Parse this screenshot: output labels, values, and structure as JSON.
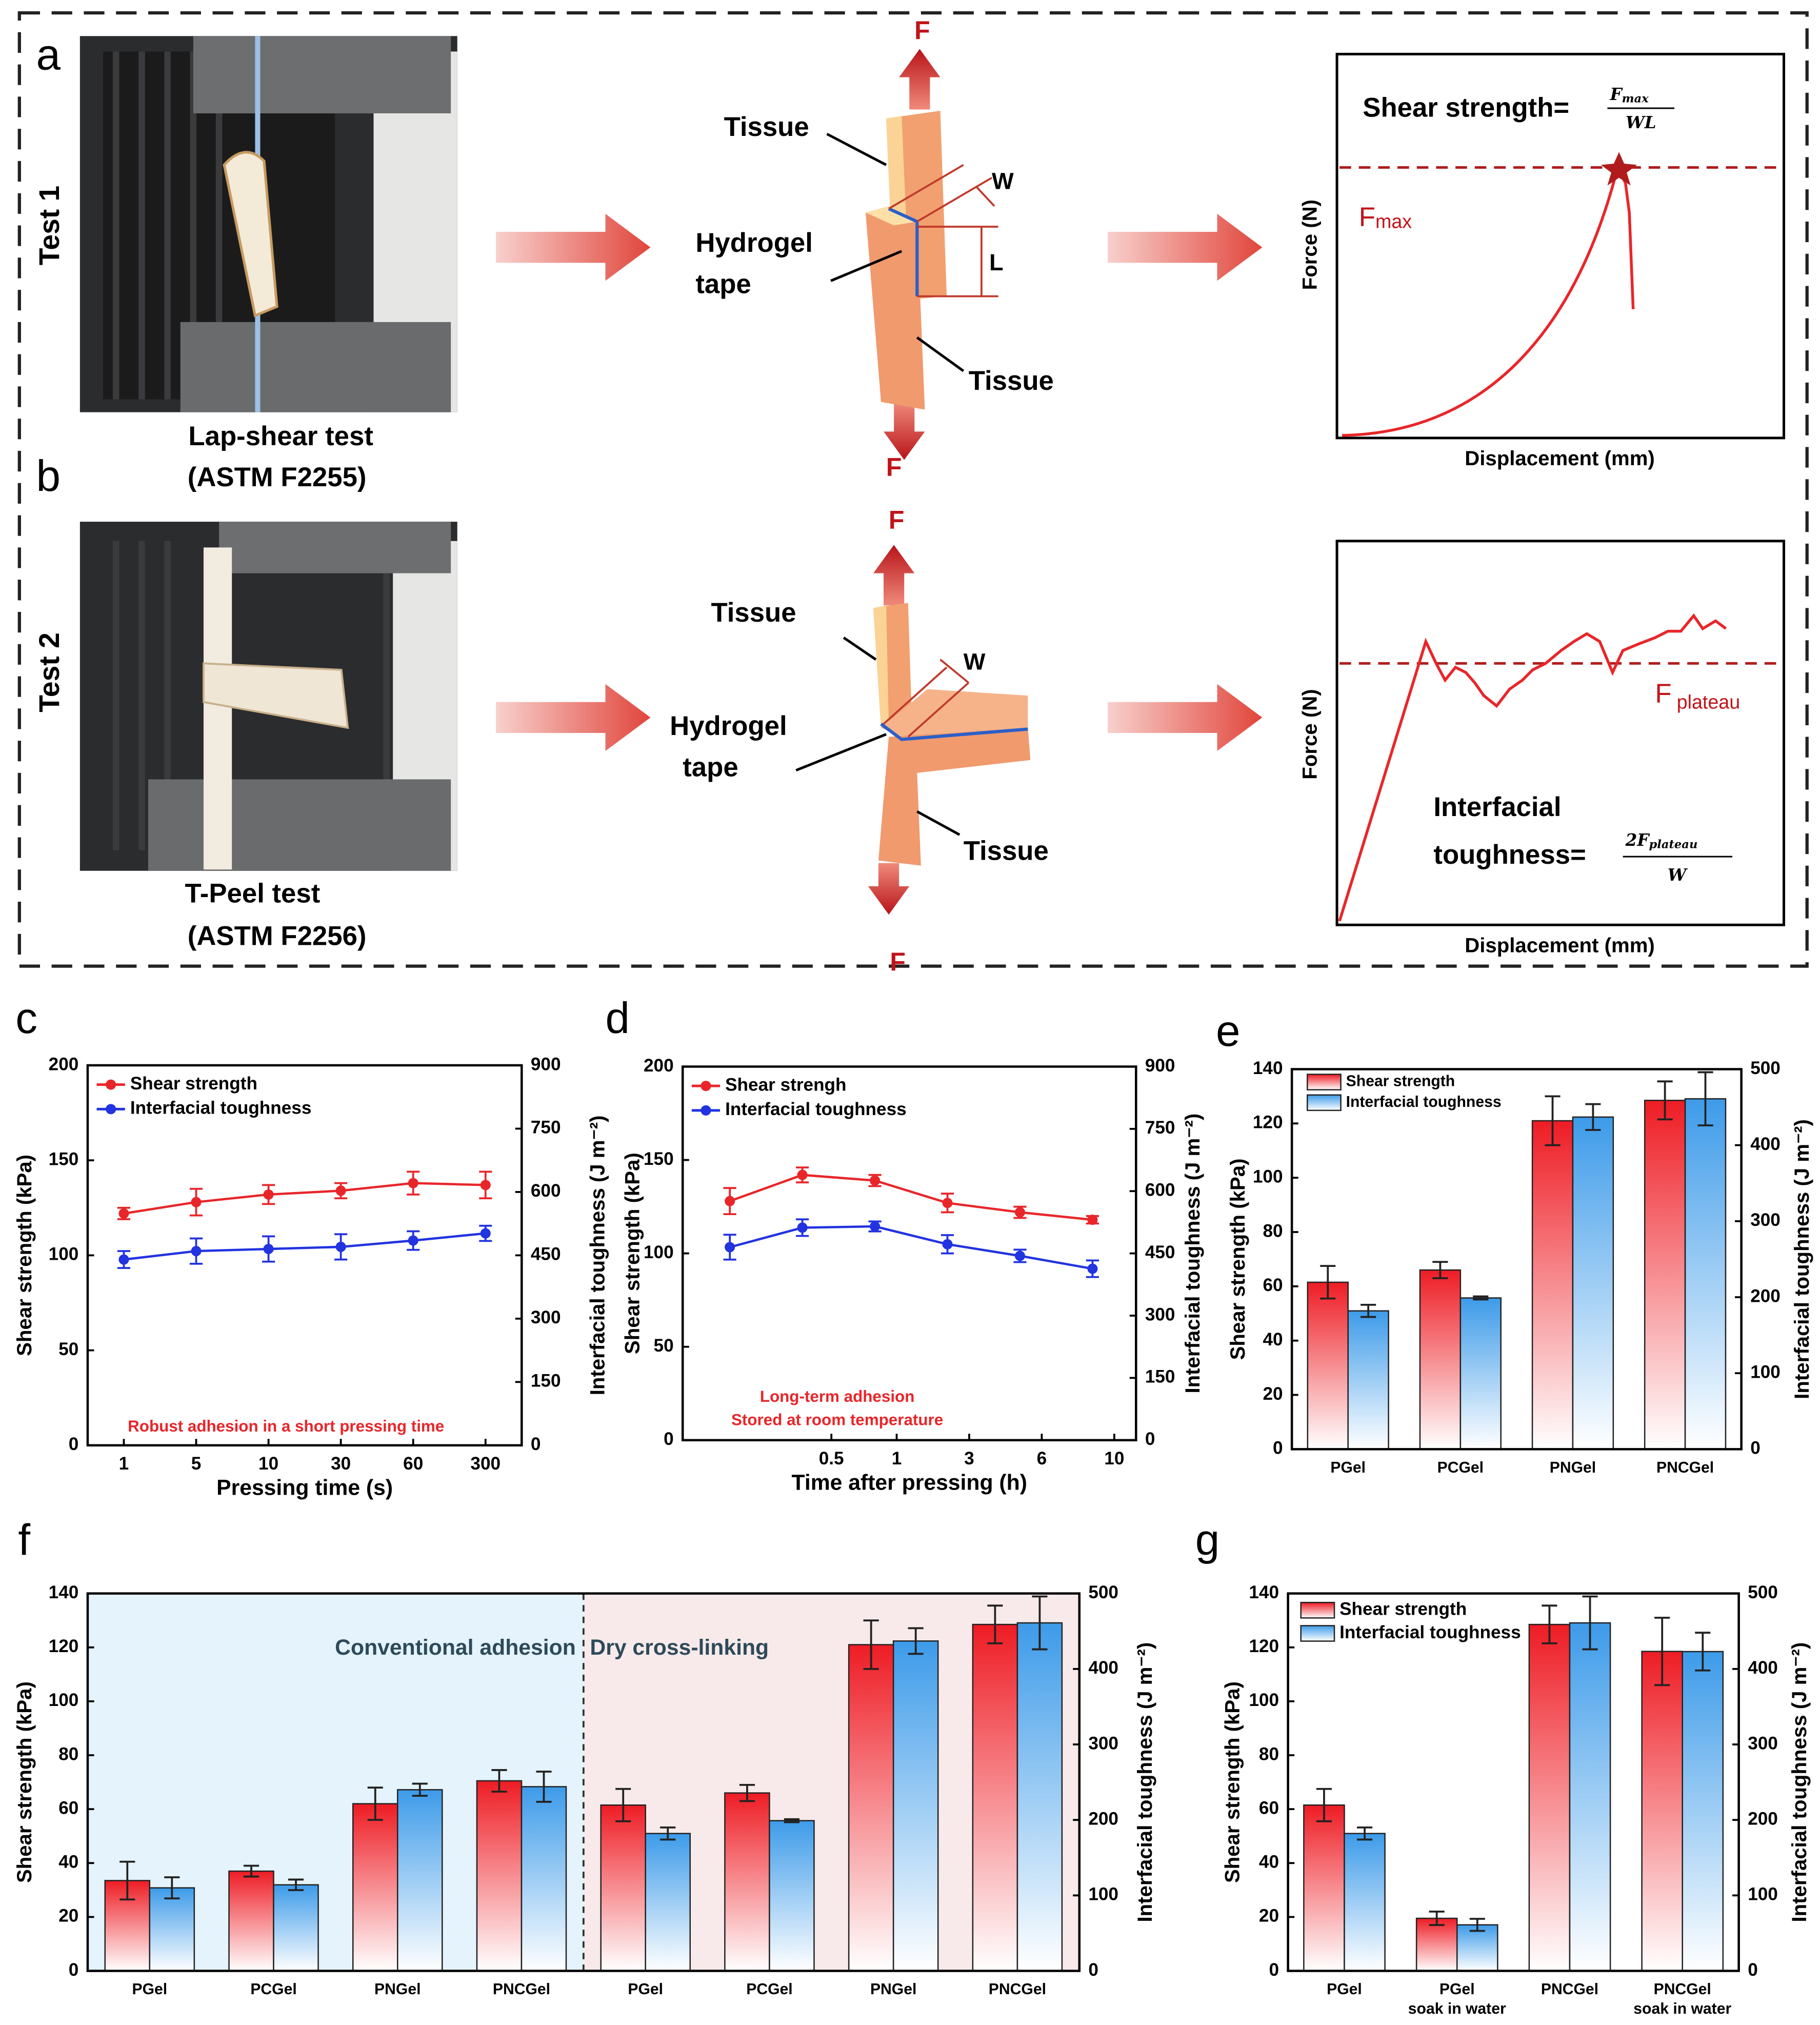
{
  "panel_labels": [
    "a",
    "b",
    "c",
    "d",
    "e",
    "f",
    "g"
  ],
  "tests": [
    {
      "test": "Test 1",
      "caption": [
        "Lap-shear test",
        "(ASTM F2255)"
      ],
      "force_top": "F",
      "force_bottom": "F",
      "tissue_top": "Tissue",
      "hydrogel": [
        "Hydrogel",
        "tape"
      ],
      "tissue_bottom": "Tissue",
      "width": "W",
      "length": "L",
      "xlabel": "Displacement (mm)",
      "ylabel": "Force (N)",
      "force_label": "F",
      "force_sub": "max",
      "formula": [
        "Shear strength="
      ],
      "numerator": "F",
      "numerator_sub": "max",
      "denominator": "WL"
    },
    {
      "test": "Test 2",
      "caption": [
        "T-Peel test",
        "(ASTM F2256)"
      ],
      "force_top": "F",
      "force_bottom": "F",
      "tissue_top": "Tissue",
      "hydrogel": [
        "Hydrogel",
        "tape"
      ],
      "tissue_bottom": "Tissue",
      "width": "W",
      "xlabel": "Displacement (mm)",
      "ylabel": "Force (N)",
      "force_label": "F",
      "force_sub": "plateau",
      "formula": [
        "Interfacial",
        "toughness="
      ],
      "numerator": "2F",
      "numerator_sub": "plateau",
      "denominator": "W"
    }
  ],
  "chart_data": [
    {
      "type": "line",
      "categories": [
        "1",
        "5",
        "10",
        "30",
        "60",
        "300"
      ],
      "xlabel": "Pressing time (s)",
      "ylabel": "Shear strength (kPa)",
      "y2label": "Interfacial toughness (J m⁻²)",
      "ylim": [
        0,
        200
      ],
      "yticks": [
        0,
        50,
        100,
        150,
        200
      ],
      "y2lim": [
        0,
        900
      ],
      "y2ticks": [
        0,
        150,
        300,
        450,
        600,
        750,
        900
      ],
      "series": [
        {
          "name": "Shear strength",
          "color": "#e8262a",
          "values": [
            122,
            128,
            132,
            134,
            138,
            137
          ],
          "errors": [
            3,
            7,
            5,
            4,
            6,
            7
          ]
        },
        {
          "name": "Interfacial toughness",
          "color": "#2233e0",
          "axis": "y2",
          "values": [
            440,
            460,
            465,
            470,
            485,
            502
          ],
          "errors": [
            20,
            30,
            30,
            30,
            22,
            18
          ]
        }
      ],
      "annotations": [
        "Robust adhesion in a short pressing time"
      ]
    },
    {
      "type": "line",
      "x": [
        0,
        1,
        2,
        3,
        4,
        5
      ],
      "xlim": [
        -0.65,
        5.6
      ],
      "xticks": [
        {
          "value": 1.4,
          "label": "0.5"
        },
        {
          "value": 2.3,
          "label": "1"
        },
        {
          "value": 3.3,
          "label": "3"
        },
        {
          "value": 4.3,
          "label": "6"
        },
        {
          "value": 5.3,
          "label": "10"
        }
      ],
      "xlabel": "Time after pressing (h)",
      "ylabel": "Shear strength (kPa)",
      "y2label": "Interfacial toughness (J m⁻²)",
      "ylim": [
        0,
        200
      ],
      "yticks": [
        0,
        50,
        100,
        150,
        200
      ],
      "y2lim": [
        0,
        900
      ],
      "y2ticks": [
        0,
        150,
        300,
        450,
        600,
        750,
        900
      ],
      "series": [
        {
          "name": "Shear strengh",
          "color": "#e8262a",
          "values": [
            128,
            142,
            139,
            127,
            122,
            118
          ],
          "errors": [
            7,
            4,
            3,
            5,
            3,
            2
          ]
        },
        {
          "name": "Interfacial toughness",
          "color": "#2233e0",
          "axis": "y2",
          "values": [
            465,
            512,
            515,
            472,
            444,
            413
          ],
          "errors": [
            30,
            20,
            12,
            22,
            15,
            20
          ]
        }
      ],
      "annotations": [
        "Long-term adhesion",
        "Stored at room temperature"
      ]
    },
    {
      "type": "bar",
      "categories": [
        "PGel",
        "PCGel",
        "PNGel",
        "PNCGel"
      ],
      "ylabel": "Shear strength (kPa)",
      "y2label": "Interfacial toughness (J m⁻²)",
      "ylim": [
        0,
        140
      ],
      "yticks": [
        0,
        20,
        40,
        60,
        80,
        100,
        120,
        140
      ],
      "y2lim": [
        0,
        500
      ],
      "y2ticks": [
        0,
        100,
        200,
        300,
        400,
        500
      ],
      "series": [
        {
          "name": "Shear strength",
          "color": "#ee1c24",
          "values": [
            61.5,
            66,
            121,
            128.5
          ],
          "errors": [
            6,
            3,
            9,
            7
          ]
        },
        {
          "name": "Interfacial toughness",
          "color": "#3d9be9",
          "axis": "y2",
          "values": [
            182,
            199,
            437,
            461
          ],
          "errors": [
            8,
            2,
            17,
            35
          ]
        }
      ]
    },
    {
      "type": "bar",
      "categories": [
        "PGel",
        "PCGel",
        "PNGel",
        "PNCGel",
        "PGel",
        "PCGel",
        "PNGel",
        "PNCGel"
      ],
      "ylabel": "Shear strength (kPa)",
      "y2label": "Interfacial toughness (J m⁻²)",
      "ylim": [
        0,
        140
      ],
      "yticks": [
        0,
        20,
        40,
        60,
        80,
        100,
        120,
        140
      ],
      "y2lim": [
        0,
        500
      ],
      "y2ticks": [
        0,
        100,
        200,
        300,
        400,
        500
      ],
      "regions": [
        {
          "label": "Conventional adhesion",
          "color": "#e4f3fc"
        },
        {
          "label": "Dry cross-linking",
          "color": "#f8eaea"
        }
      ],
      "series": [
        {
          "color": "#ee1c24",
          "values": [
            33.5,
            37,
            62,
            70.5,
            61.5,
            66,
            121,
            128.5
          ],
          "errors": [
            7,
            2,
            6,
            4,
            6,
            3,
            9,
            7
          ]
        },
        {
          "color": "#3d9be9",
          "axis": "y2",
          "values": [
            110,
            114,
            240,
            244,
            182,
            199,
            437,
            461
          ],
          "errors": [
            14,
            7,
            8,
            20,
            8,
            2,
            17,
            35
          ]
        }
      ]
    },
    {
      "type": "bar",
      "categories": [
        [
          "PGel"
        ],
        [
          "PGel",
          "soak in water"
        ],
        [
          "PNCGel"
        ],
        [
          "PNCGel",
          "soak in water"
        ]
      ],
      "ylabel": "Shear strength (kPa)",
      "y2label": "Interfacial toughness (J m⁻²)",
      "ylim": [
        0,
        140
      ],
      "yticks": [
        0,
        20,
        40,
        60,
        80,
        100,
        120,
        140
      ],
      "y2lim": [
        0,
        500
      ],
      "y2ticks": [
        0,
        100,
        200,
        300,
        400,
        500
      ],
      "series": [
        {
          "name": "Shear strength",
          "color": "#ee1c24",
          "values": [
            61.5,
            19.5,
            128.5,
            118.5
          ],
          "errors": [
            6,
            2.5,
            7,
            12.5
          ]
        },
        {
          "name": "Interfacial toughness",
          "color": "#3d9be9",
          "axis": "y2",
          "values": [
            182,
            61,
            461,
            423
          ],
          "errors": [
            8,
            8,
            35,
            25
          ]
        }
      ]
    }
  ]
}
